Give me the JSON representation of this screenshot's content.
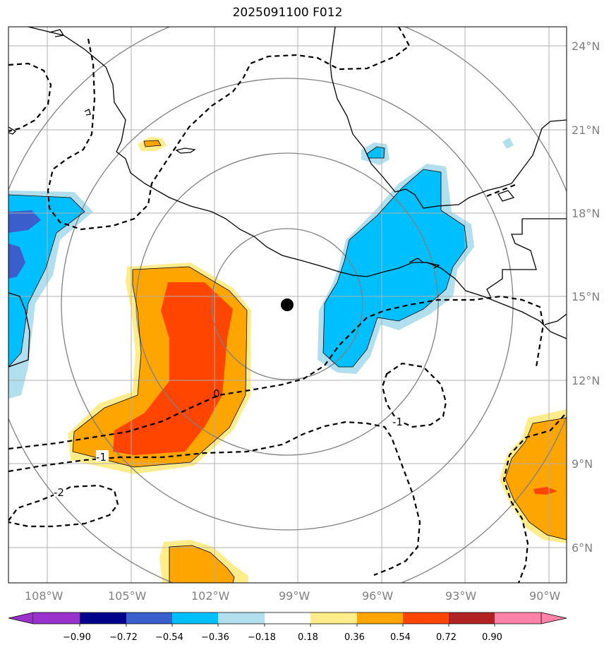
{
  "title": "2025091100 F012",
  "map": {
    "lon_labels": [
      "108°W",
      "105°W",
      "102°W",
      "99°W",
      "96°W",
      "93°W",
      "90°W"
    ],
    "lat_labels": [
      "24°N",
      "21°N",
      "18°N",
      "15°N",
      "12°N",
      "9°N",
      "6°N"
    ],
    "contour_labels": [
      "0",
      "-1",
      "-1",
      "-2"
    ],
    "center_marker": "storm-center",
    "colors": {
      "purple": "#9932cc",
      "navy": "#00008b",
      "royal": "#3a5fcd",
      "cyan": "#00bfff",
      "lightblue": "#b2dfee",
      "white": "#ffffff",
      "yellow": "#ffec8b",
      "orange": "#ffa500",
      "redorange": "#ff4500",
      "firebrick": "#b22222",
      "pink": "#ff82ab"
    }
  },
  "colorbar": {
    "labels": [
      "−0.90",
      "−0.72",
      "−0.54",
      "−0.36",
      "−0.18",
      "0.18",
      "0.36",
      "0.54",
      "0.72",
      "0.90"
    ]
  }
}
